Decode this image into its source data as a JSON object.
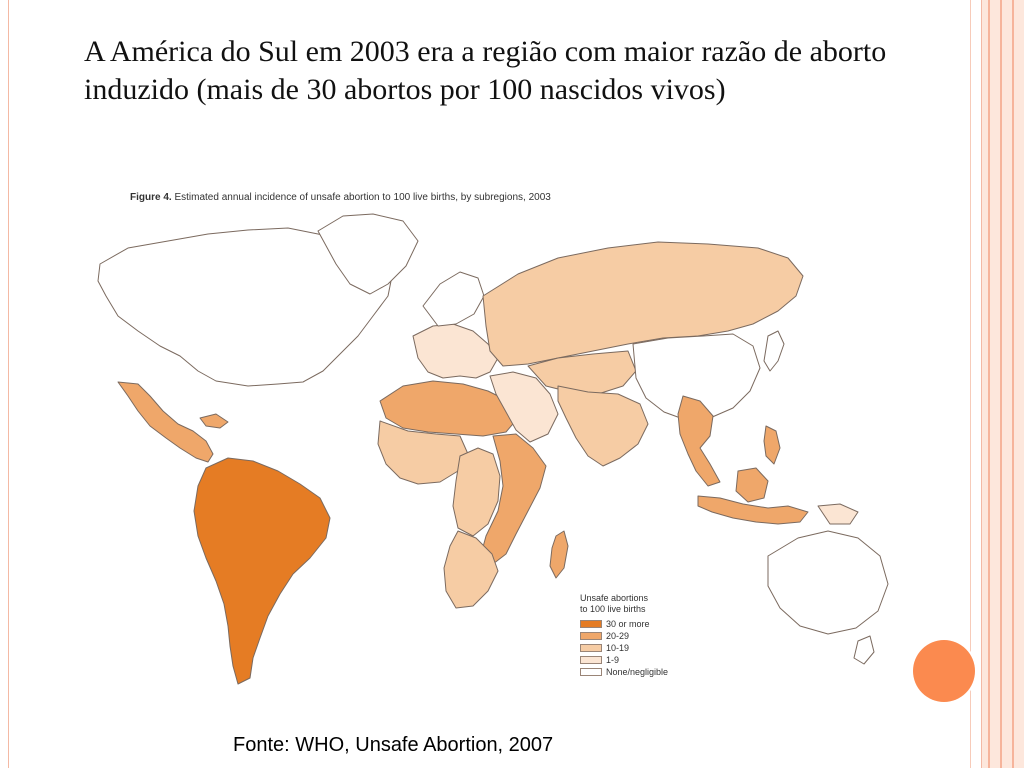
{
  "slide": {
    "title": "A América do Sul em 2003 era a região com maior razão de aborto induzido (mais de 30 abortos por 100 nascidos vivos)",
    "source": "Fonte: WHO, Unsafe Abortion, 2007"
  },
  "figure": {
    "label": "Figure 4.",
    "caption": "Estimated annual incidence of unsafe abortion to 100 live births, by subregions, 2003"
  },
  "legend": {
    "title_line1": "Unsafe abortions",
    "title_line2": "to 100 live births",
    "items": [
      {
        "label": "30 or more",
        "color": "#e57c24"
      },
      {
        "label": "20-29",
        "color": "#efa76a"
      },
      {
        "label": "10-19",
        "color": "#f6cca4"
      },
      {
        "label": "1-9",
        "color": "#fbe5d3"
      },
      {
        "label": "None/negligible",
        "color": "#ffffff"
      }
    ]
  },
  "colors": {
    "c30": "#e57c24",
    "c20": "#efa76a",
    "c10": "#f6cca4",
    "c1": "#fbe5d3",
    "none": "#ffffff",
    "accent_dot": "#fb8a4f"
  }
}
